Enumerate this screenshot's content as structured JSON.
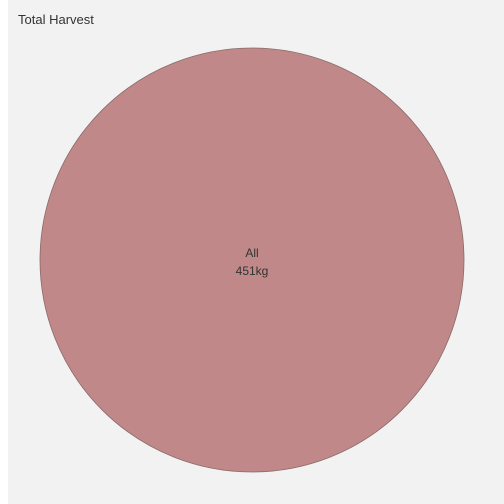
{
  "chart_data": {
    "type": "pie",
    "title": "Total Harvest",
    "slices": [
      {
        "label": "All",
        "value": 451,
        "value_label": "451kg",
        "color": "#c08888"
      }
    ],
    "slice_outline_color": "#8a6a6a",
    "background_color": "#f2f2f2"
  }
}
